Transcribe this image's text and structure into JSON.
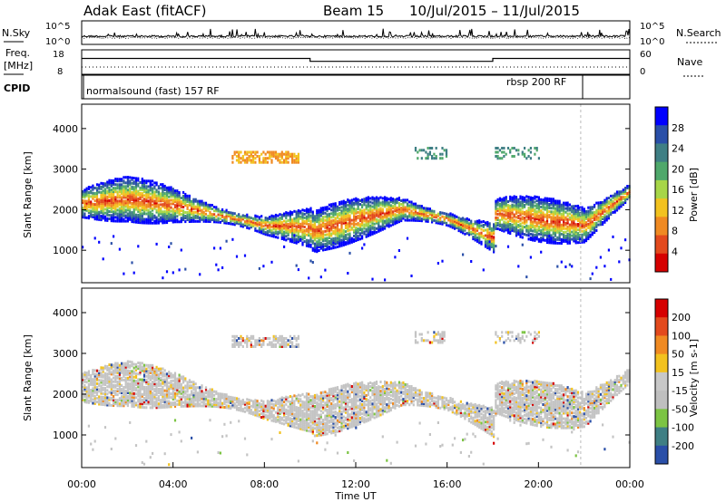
{
  "header": {
    "station": "Adak East (fitACF)",
    "beam": "Beam 15",
    "dates": "10/Jul/2015 – 11/Jul/2015"
  },
  "colors": {
    "power_scale": [
      "#0000ff",
      "#2a4fa8",
      "#3f7f84",
      "#4fa86b",
      "#a7d648",
      "#f2c21f",
      "#f08a22",
      "#e34a1d",
      "#d60000"
    ],
    "velocity_scale": [
      "#2a4fa8",
      "#3f7f84",
      "#7cc443",
      "#bfbfbf",
      "#c8c8c8",
      "#f2c21f",
      "#f08a22",
      "#e34a1d",
      "#d60000"
    ]
  },
  "chart_data": [
    {
      "type": "line",
      "name": "noise-panel",
      "left_label": "N.Sky",
      "right_label": "N.Search",
      "left_ticks": [
        "10^5",
        "10^0"
      ],
      "right_ticks": [
        "10^5",
        "10^0"
      ]
    },
    {
      "type": "line",
      "name": "freq-panel",
      "left_label_line1": "Freq.",
      "left_label_line2": "[MHz]",
      "right_label": "Nave",
      "left_ticks": [
        "18",
        "8"
      ],
      "right_ticks": [
        "60",
        "0"
      ],
      "ylim": [
        8,
        18
      ],
      "x": [
        0,
        10,
        10,
        18,
        18,
        24
      ],
      "y": [
        14.5,
        14.5,
        13.3,
        13.3,
        14.5,
        14.5
      ]
    },
    {
      "type": "table",
      "name": "cpid-panel",
      "label": "CPID",
      "entries": [
        "normalsound (fast) 157 RF",
        "rbsp 200 RF"
      ]
    },
    {
      "type": "heatmap",
      "name": "power-panel",
      "ylabel": "Slant Range [km]",
      "yticks": [
        1000,
        2000,
        3000,
        4000
      ],
      "ylim": [
        200,
        4600
      ],
      "colorbar_label": "Power [dB]",
      "colorbar_ticks": [
        "28",
        "24",
        "20",
        "16",
        "12",
        "8",
        "4"
      ],
      "band": {
        "x": [
          0,
          2,
          4,
          6,
          8,
          10,
          10.1,
          12,
          14,
          16,
          18,
          18.1,
          20,
          22,
          24
        ],
        "center_km": [
          2200,
          2300,
          2150,
          1900,
          1650,
          1600,
          1500,
          1800,
          2050,
          1800,
          1350,
          1950,
          1800,
          1650,
          2500
        ]
      }
    },
    {
      "type": "heatmap",
      "name": "velocity-panel",
      "ylabel": "Slant Range [km]",
      "yticks": [
        1000,
        2000,
        3000,
        4000
      ],
      "ylim": [
        200,
        4600
      ],
      "colorbar_label": "Velocity [m s-1]",
      "colorbar_ticks": [
        "200",
        "100",
        "50",
        "15",
        "-15",
        "-50",
        "-100",
        "-200"
      ],
      "xlabel": "Time UT",
      "xticks": [
        "00:00",
        "04:00",
        "08:00",
        "12:00",
        "16:00",
        "20:00",
        "00:00"
      ]
    }
  ]
}
